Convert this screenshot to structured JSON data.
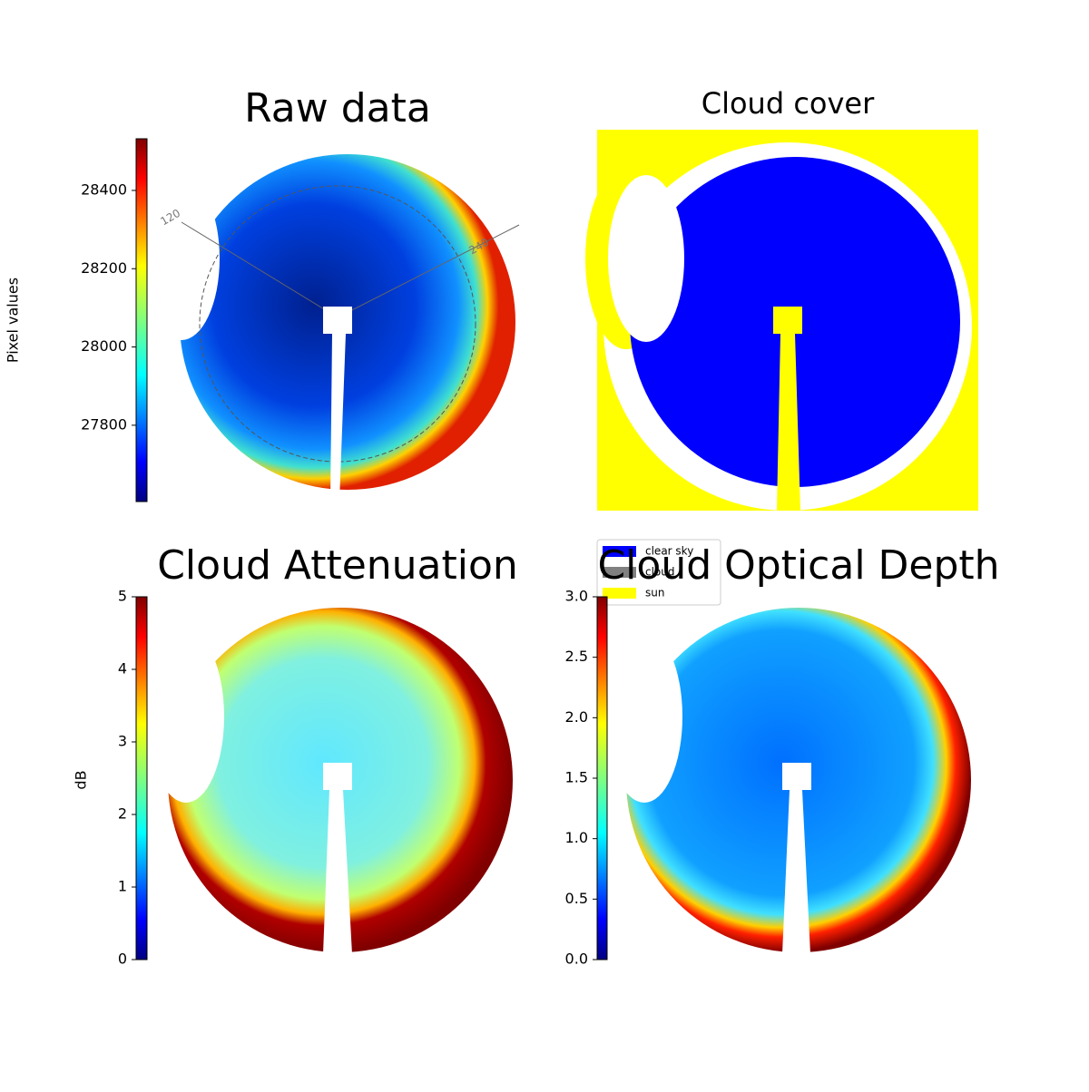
{
  "chart_data": [
    {
      "type": "image",
      "title": "Raw data",
      "colorbar_label": "Pixel values",
      "colormap": "jet",
      "ylim": [
        27605,
        28532
      ],
      "yticks": [
        27800,
        28000,
        28200,
        28400
      ],
      "annotations": [
        "120",
        "240"
      ]
    },
    {
      "type": "image",
      "title": "Cloud cover",
      "legend": [
        {
          "name": "clear sky",
          "color": "#0000ff"
        },
        {
          "name": "cloud",
          "color": "#808080"
        },
        {
          "name": "sun",
          "color": "#ffff00"
        }
      ]
    },
    {
      "type": "image",
      "title": "Cloud Attenuation",
      "colorbar_label": "dB",
      "colormap": "jet",
      "ylim": [
        0,
        5
      ],
      "yticks": [
        0,
        1,
        2,
        3,
        4,
        5
      ]
    },
    {
      "type": "image",
      "title": "Cloud Optical Depth",
      "colormap": "jet",
      "ylim": [
        0,
        3
      ],
      "yticks": [
        {
          "value": 0,
          "label": "0.0"
        },
        0.5,
        {
          "value": 1,
          "label": "1.0"
        },
        1.5,
        {
          "value": 2,
          "label": "2.0"
        },
        2.5,
        {
          "value": 3,
          "label": "3.0"
        }
      ]
    }
  ]
}
